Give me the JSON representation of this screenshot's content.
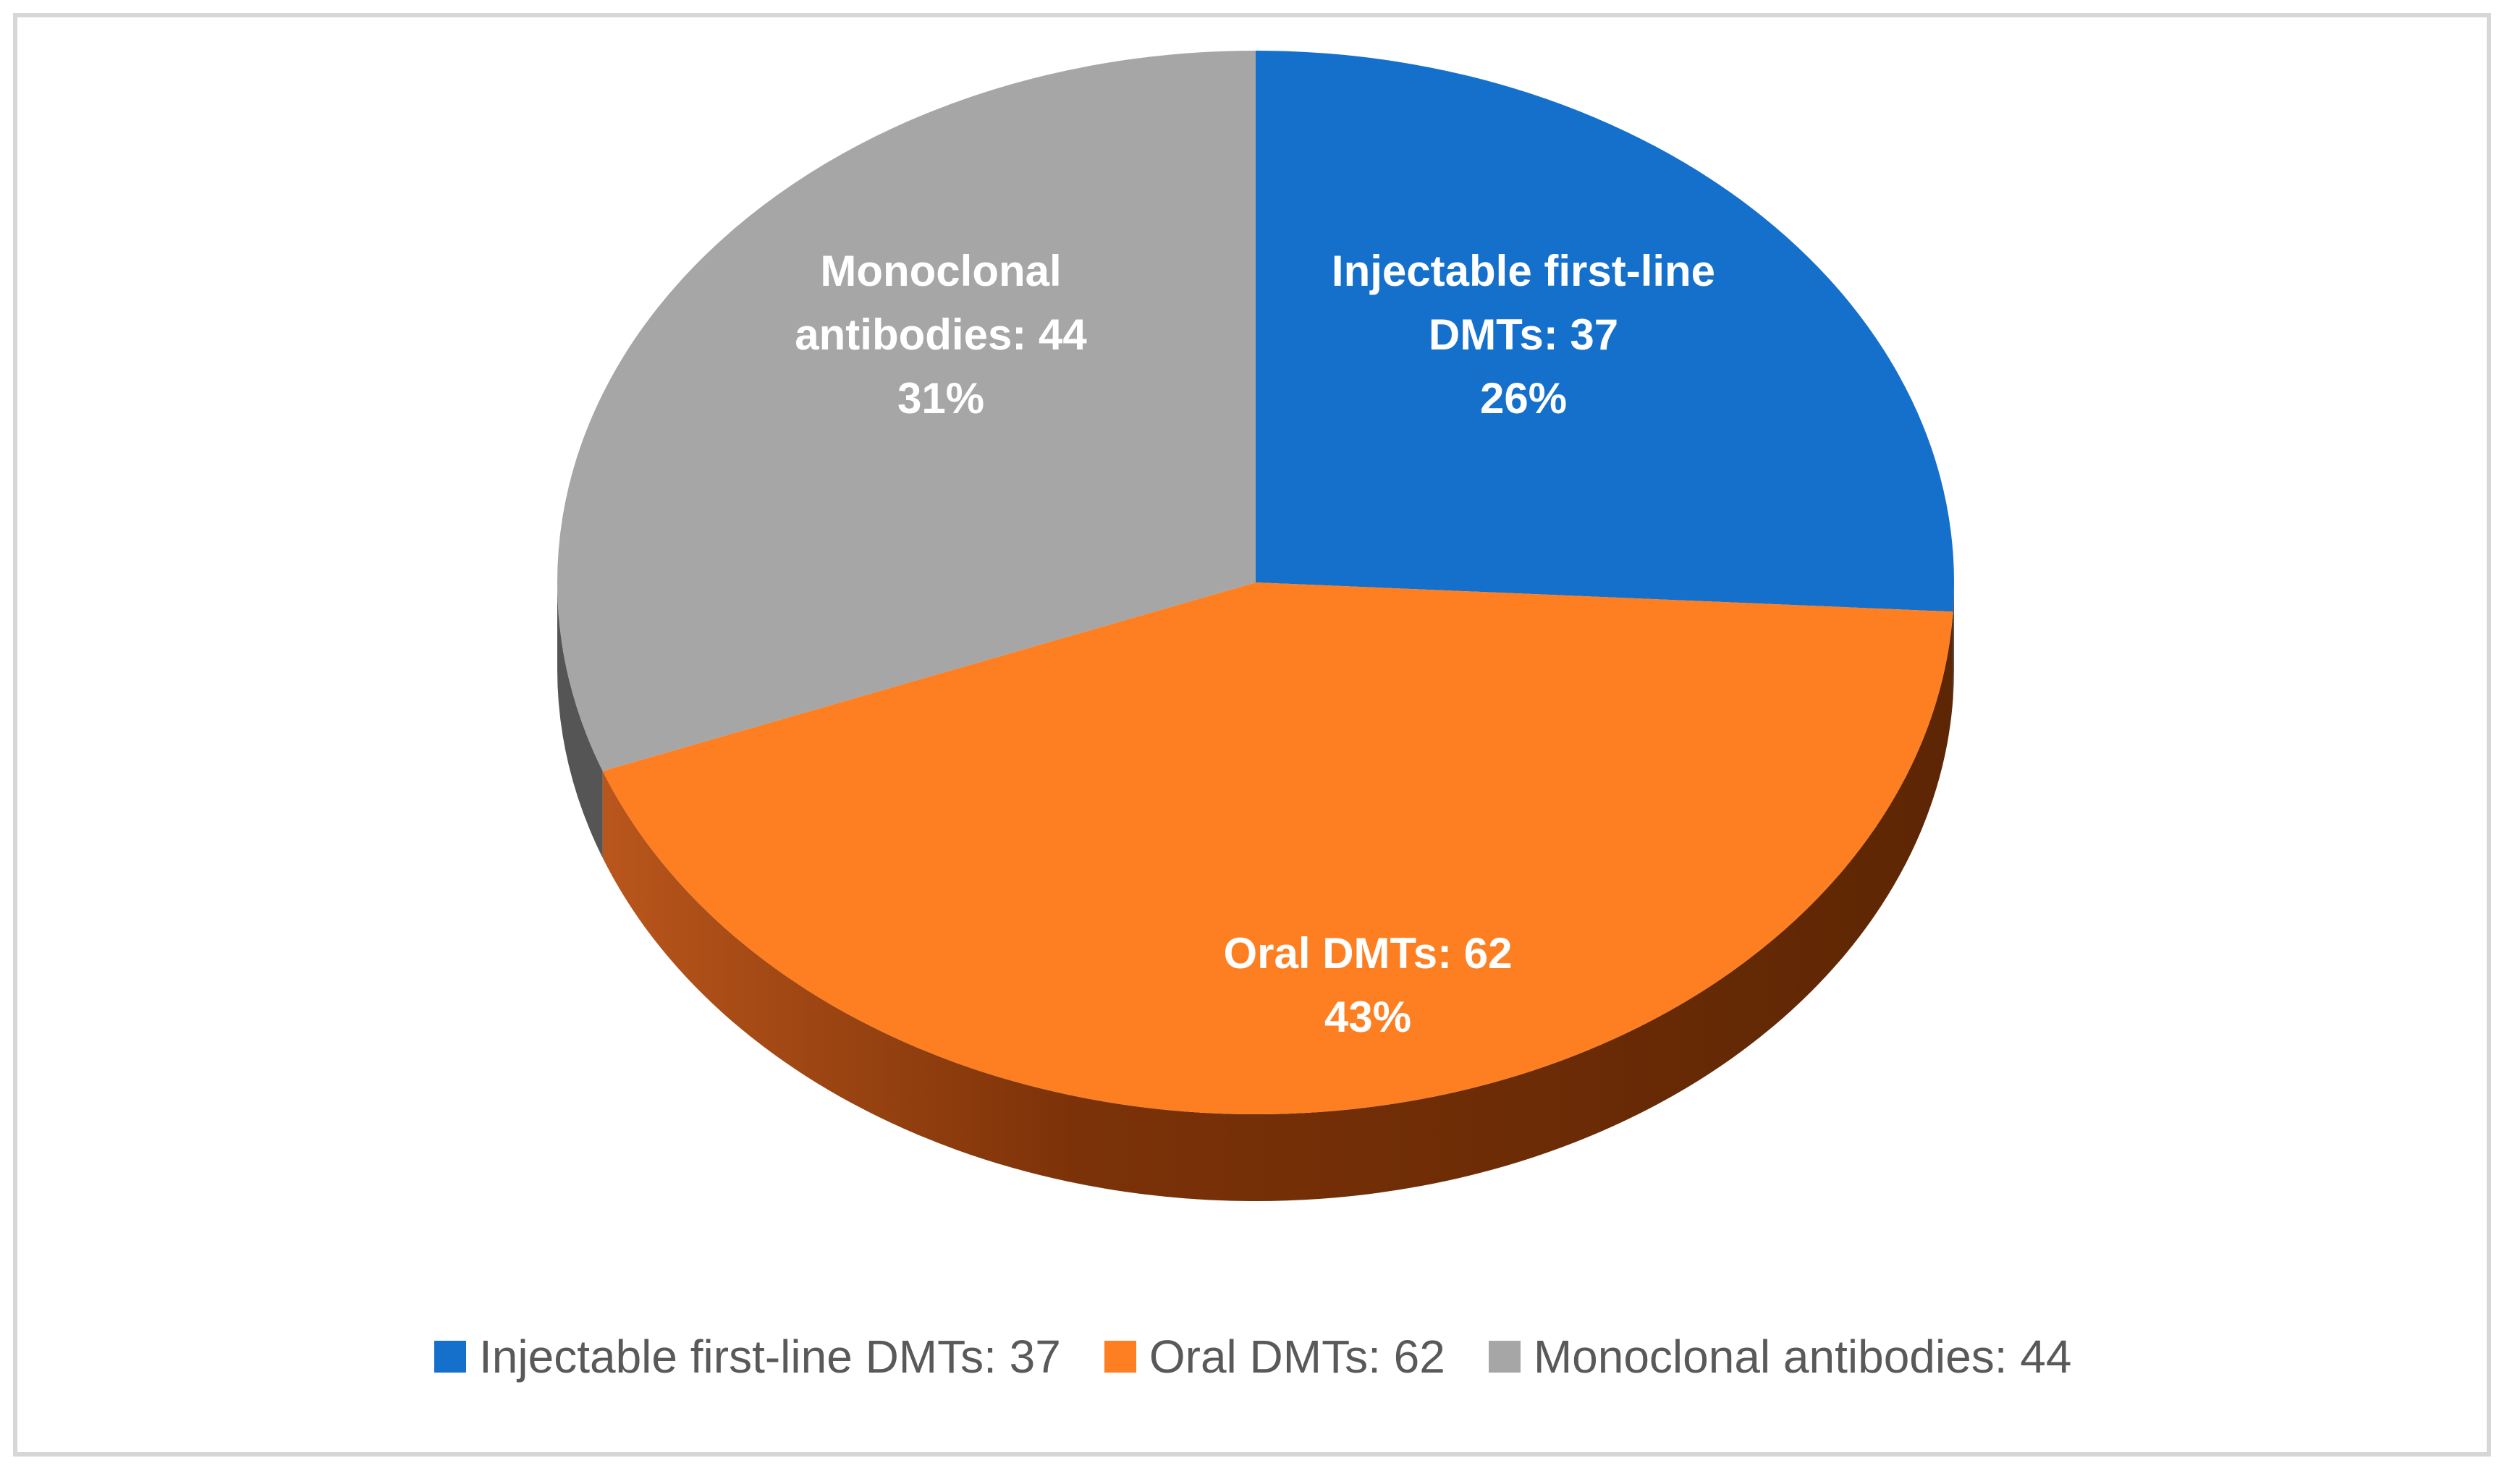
{
  "chart_data": {
    "type": "pie",
    "title": "",
    "slices": [
      {
        "label": "Injectable first-line DMTs",
        "value": 37,
        "percent": "26%",
        "color": "#1570cc",
        "inside_label_lines": [
          "Injectable first-line",
          "DMTs: 37",
          "26%"
        ],
        "legend_label": "Injectable first-line DMTs: 37"
      },
      {
        "label": "Oral DMTs",
        "value": 62,
        "percent": "43%",
        "color": "#fd7f22",
        "inside_label_lines": [
          "Oral DMTs: 62",
          "43%"
        ],
        "legend_label": "Oral DMTs: 62"
      },
      {
        "label": "Monoclonal antibodies",
        "value": 44,
        "percent": "31%",
        "color": "#a6a6a6",
        "inside_label_lines": [
          "Monoclonal",
          "antibodies: 44",
          "31%"
        ],
        "legend_label": "Monoclonal antibodies: 44"
      }
    ],
    "legend_position": "bottom",
    "style": "3d-tilted"
  }
}
